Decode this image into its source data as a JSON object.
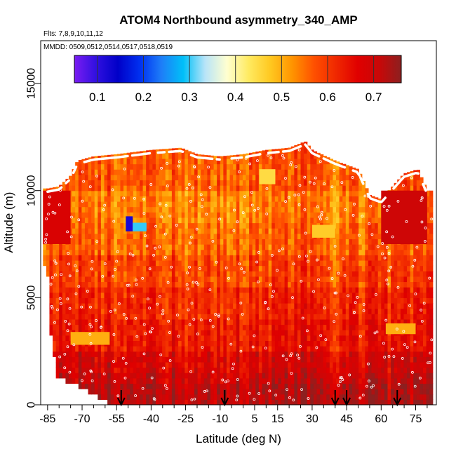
{
  "chart_data": {
    "type": "heatmap",
    "title": "ATOM4 Northbound asymmetry_340_AMP",
    "flights_label": "Flts: 7,8,9,10,11,12",
    "dates_label": "MMDD: 0509,0512,0514,0517,0518,0519",
    "xlabel": "Latitude (deg N)",
    "ylabel": "Altitude (m)",
    "xlim": [
      -88,
      84
    ],
    "ylim": [
      0,
      17000
    ],
    "x_ticks": [
      -85,
      -70,
      -55,
      -40,
      -25,
      -10,
      5,
      15,
      30,
      45,
      60,
      75
    ],
    "x_minor_ticks": [
      -80,
      -75,
      -65,
      -60,
      -50,
      -45,
      -35,
      -30,
      -20,
      -15,
      -5,
      0,
      10,
      20,
      25,
      35,
      40,
      50,
      55,
      65,
      70,
      80
    ],
    "y_ticks": [
      0,
      5000,
      10000,
      15000
    ],
    "colorbar": {
      "min": 0.05,
      "max": 0.76,
      "ticks": [
        0.1,
        0.2,
        0.3,
        0.4,
        0.5,
        0.6,
        0.7
      ],
      "colors": [
        "#7a1cf2",
        "#3010e0",
        "#0000c8",
        "#0030f0",
        "#1e7ef8",
        "#00c0f8",
        "#b8e4f8",
        "#ffffd0",
        "#ffea60",
        "#ffc820",
        "#ff9400",
        "#ff5000",
        "#f02800",
        "#e00000",
        "#c80808",
        "#8c2020"
      ]
    },
    "surface_arrows_lat": [
      -53,
      -8,
      40,
      45,
      67
    ],
    "ceiling_profile": [
      {
        "lat": -85,
        "alt": 10100
      },
      {
        "lat": -80,
        "alt": 10200
      },
      {
        "lat": -75,
        "alt": 10700
      },
      {
        "lat": -72,
        "alt": 11400
      },
      {
        "lat": -65,
        "alt": 11600
      },
      {
        "lat": -55,
        "alt": 11700
      },
      {
        "lat": -40,
        "alt": 11900
      },
      {
        "lat": -27,
        "alt": 12000
      },
      {
        "lat": -20,
        "alt": 11700
      },
      {
        "lat": -10,
        "alt": 11600
      },
      {
        "lat": 0,
        "alt": 11700
      },
      {
        "lat": 10,
        "alt": 11900
      },
      {
        "lat": 20,
        "alt": 12000
      },
      {
        "lat": 27,
        "alt": 12300
      },
      {
        "lat": 30,
        "alt": 11900
      },
      {
        "lat": 40,
        "alt": 11400
      },
      {
        "lat": 50,
        "alt": 11000
      },
      {
        "lat": 55,
        "alt": 9800
      },
      {
        "lat": 60,
        "alt": 9600
      },
      {
        "lat": 70,
        "alt": 10800
      },
      {
        "lat": 76,
        "alt": 11000
      },
      {
        "lat": 80,
        "alt": 10000
      }
    ],
    "bottom_profile": [
      {
        "lat": -85,
        "alt": 6500
      },
      {
        "lat": -84,
        "alt": 4000
      },
      {
        "lat": -83,
        "alt": 2900
      },
      {
        "lat": -81,
        "alt": 1500
      },
      {
        "lat": -72,
        "alt": 1000
      },
      {
        "lat": -64,
        "alt": 600
      },
      {
        "lat": -55,
        "alt": 0
      },
      {
        "lat": 82,
        "alt": 0
      }
    ],
    "altitude_bands": [
      {
        "alt_min": 0,
        "alt_max": 800,
        "value": 0.72
      },
      {
        "alt_min": 800,
        "alt_max": 1500,
        "value": 0.7
      },
      {
        "alt_min": 1500,
        "alt_max": 2500,
        "value": 0.68
      },
      {
        "alt_min": 2500,
        "alt_max": 4000,
        "value": 0.64
      },
      {
        "alt_min": 4000,
        "alt_max": 5500,
        "value": 0.62
      },
      {
        "alt_min": 5500,
        "alt_max": 7000,
        "value": 0.59
      },
      {
        "alt_min": 7000,
        "alt_max": 8500,
        "value": 0.56
      },
      {
        "alt_min": 8500,
        "alt_max": 10000,
        "value": 0.54
      },
      {
        "alt_min": 10000,
        "alt_max": 12500,
        "value": 0.57
      }
    ],
    "anomalies": [
      {
        "lat_min": -51,
        "lat_max": -48,
        "alt_min": 8100,
        "alt_max": 8800,
        "value": 0.12
      },
      {
        "lat_min": -48,
        "lat_max": -42,
        "alt_min": 8100,
        "alt_max": 8500,
        "value": 0.3
      },
      {
        "lat_min": -75,
        "lat_max": -58,
        "alt_min": 2800,
        "alt_max": 3400,
        "value": 0.5
      },
      {
        "lat_min": 62,
        "lat_max": 75,
        "alt_min": 3300,
        "alt_max": 3800,
        "value": 0.5
      },
      {
        "lat_min": 7,
        "lat_max": 14,
        "alt_min": 10300,
        "alt_max": 11000,
        "value": 0.45
      },
      {
        "lat_min": 30,
        "lat_max": 40,
        "alt_min": 7800,
        "alt_max": 8400,
        "value": 0.47
      },
      {
        "lat_min": 60,
        "lat_max": 80,
        "alt_min": 7500,
        "alt_max": 10000,
        "value": 0.7
      },
      {
        "lat_min": -87,
        "lat_max": -75,
        "alt_min": 7500,
        "alt_max": 10000,
        "value": 0.68
      }
    ]
  }
}
